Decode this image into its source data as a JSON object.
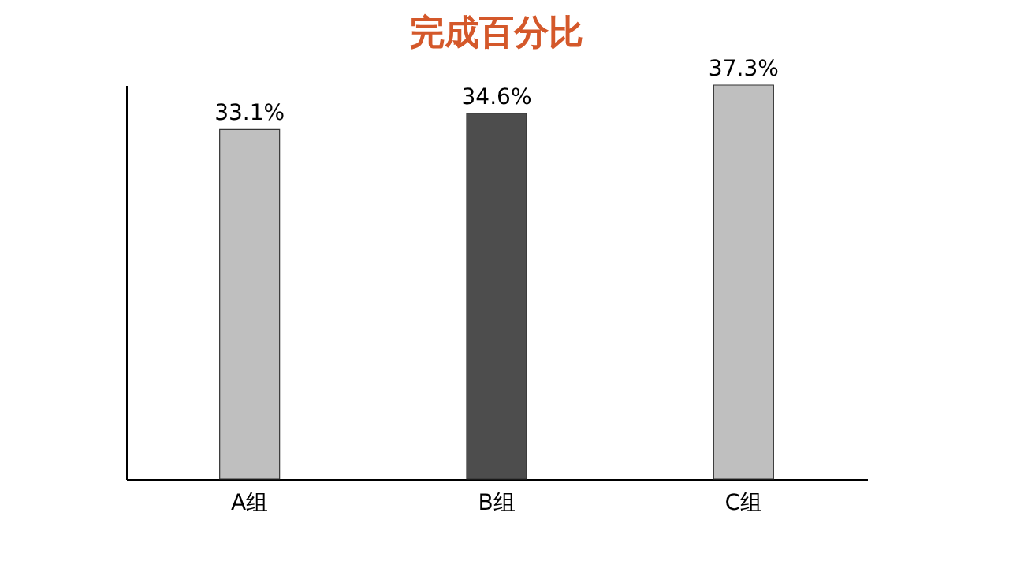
{
  "chart_data": {
    "type": "bar",
    "title": "完成百分比",
    "categories": [
      "A组",
      "B组",
      "C组"
    ],
    "values": [
      33.1,
      34.6,
      37.3
    ],
    "colors": [
      "#bfbfbf",
      "#4d4d4d",
      "#bfbfbf"
    ],
    "value_labels": [
      "33.1%",
      "34.6%",
      "37.3%"
    ],
    "grid": false,
    "tick_labels": "x"
  }
}
